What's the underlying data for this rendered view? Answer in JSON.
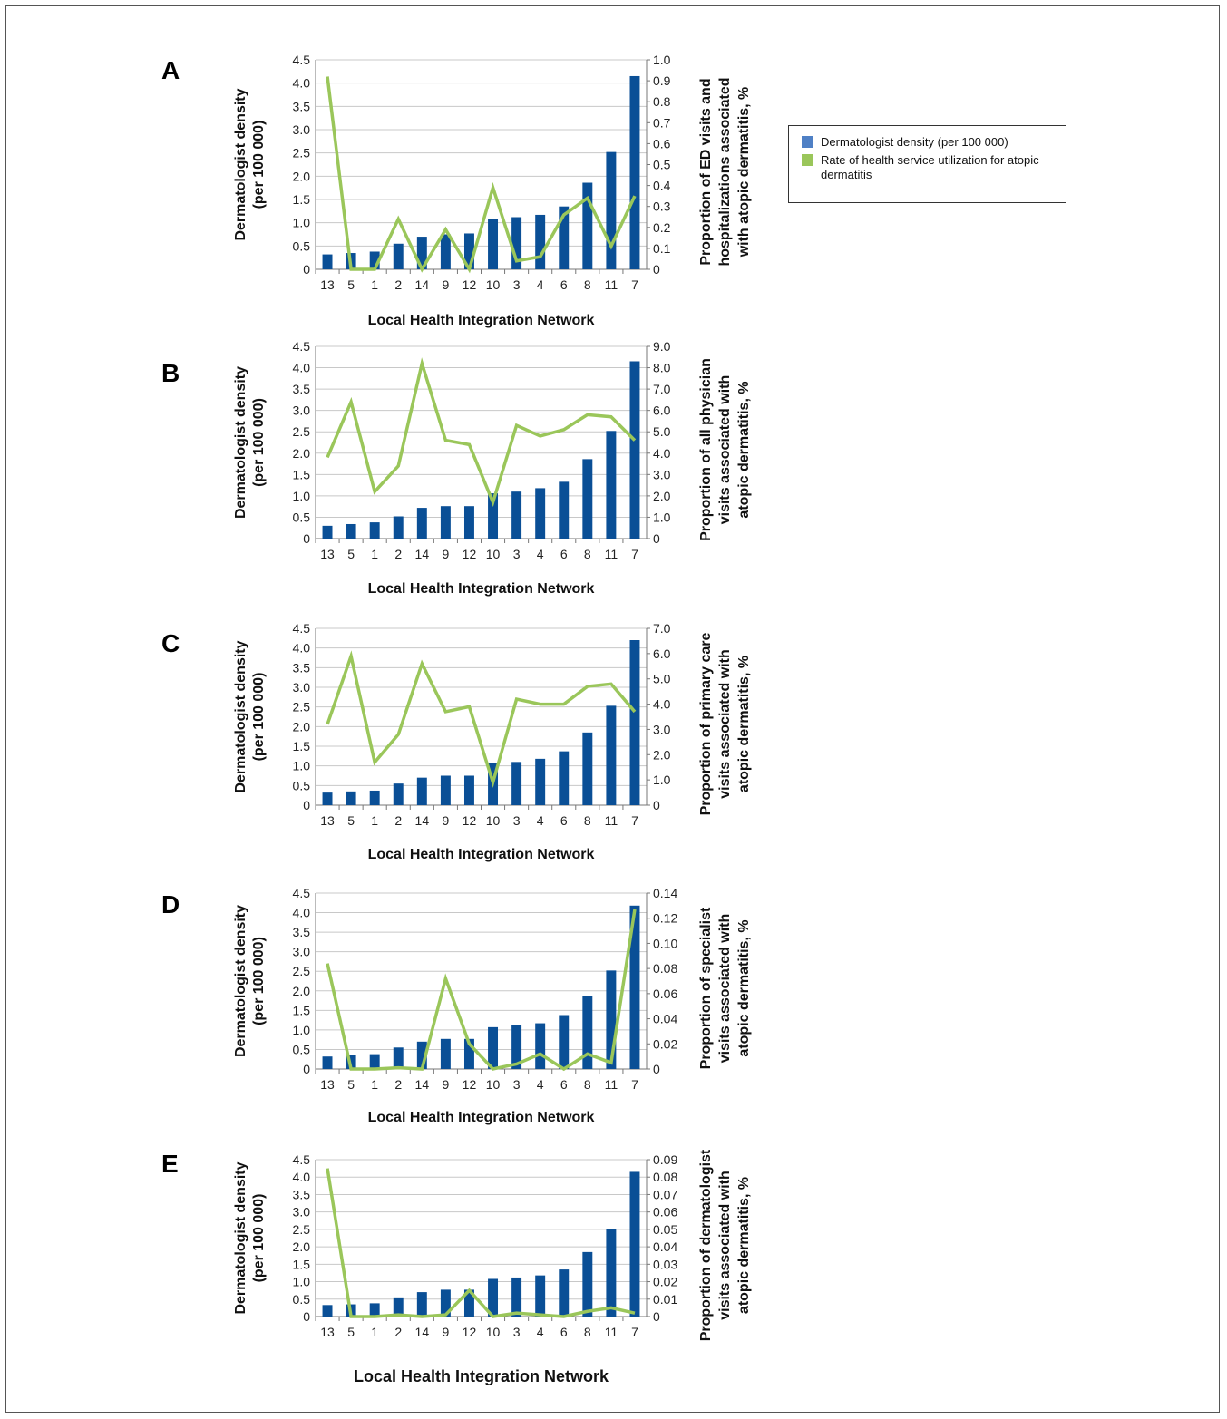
{
  "legend": {
    "density_label": "Dermatologist density (per 100 000)",
    "rate_label": "Rate of health service utilization for atopic dermatitis",
    "colors": {
      "bar": "#0a4f96",
      "line": "#9ac65a",
      "bar_swatch": "#4f80c5"
    }
  },
  "chart_data": [
    {
      "type": "bar+line",
      "panel": "A",
      "categories": [
        "13",
        "5",
        "1",
        "2",
        "14",
        "9",
        "12",
        "10",
        "3",
        "4",
        "6",
        "8",
        "11",
        "7"
      ],
      "xlabel": "Local Health Integration Network",
      "ylabel_left": [
        "Dermatologist density",
        "(per 100 000)"
      ],
      "ylabel_right": [
        "Proportion of ED visits and",
        "hospitalizations associated",
        "with atopic dermatitis, %"
      ],
      "left_axis": {
        "ylim": [
          0,
          4.5
        ],
        "ticks": [
          "0",
          "0.5",
          "1.0",
          "1.5",
          "2.0",
          "2.5",
          "3.0",
          "3.5",
          "4.0",
          "4.5"
        ]
      },
      "right_axis": {
        "ylim": [
          0,
          1.0
        ],
        "ticks": [
          "0",
          "0.1",
          "0.2",
          "0.3",
          "0.4",
          "0.5",
          "0.6",
          "0.7",
          "0.8",
          "0.9",
          "1.0"
        ]
      },
      "series": [
        {
          "name": "Dermatologist density (per 100 000)",
          "type": "bar",
          "axis": "left",
          "values": [
            0.32,
            0.35,
            0.38,
            0.55,
            0.7,
            0.75,
            0.77,
            1.08,
            1.12,
            1.17,
            1.35,
            1.86,
            2.52,
            4.15
          ]
        },
        {
          "name": "Rate of health service utilization for atopic dermatitis",
          "type": "line",
          "axis": "right",
          "values": [
            0.92,
            0.0,
            0.0,
            0.24,
            0.0,
            0.19,
            0.0,
            0.39,
            0.04,
            0.06,
            0.26,
            0.34,
            0.11,
            0.35
          ]
        }
      ]
    },
    {
      "type": "bar+line",
      "panel": "B",
      "categories": [
        "13",
        "5",
        "1",
        "2",
        "14",
        "9",
        "12",
        "10",
        "3",
        "4",
        "6",
        "8",
        "11",
        "7"
      ],
      "xlabel": "Local Health Integration Network",
      "ylabel_left": [
        "Dermatologist density",
        "(per 100 000)"
      ],
      "ylabel_right": [
        "Proportion of all physician",
        "visits associated with",
        "atopic dermatitis, %"
      ],
      "left_axis": {
        "ylim": [
          0,
          4.5
        ],
        "ticks": [
          "0",
          "0.5",
          "1.0",
          "1.5",
          "2.0",
          "2.5",
          "3.0",
          "3.5",
          "4.0",
          "4.5"
        ]
      },
      "right_axis": {
        "ylim": [
          0,
          9.0
        ],
        "ticks": [
          "0",
          "1.0",
          "2.0",
          "3.0",
          "4.0",
          "5.0",
          "6.0",
          "7.0",
          "8.0",
          "9.0"
        ]
      },
      "series": [
        {
          "name": "Dermatologist density (per 100 000)",
          "type": "bar",
          "axis": "left",
          "values": [
            0.3,
            0.34,
            0.38,
            0.52,
            0.72,
            0.76,
            0.76,
            1.06,
            1.1,
            1.18,
            1.33,
            1.86,
            2.52,
            4.15
          ]
        },
        {
          "name": "Rate of health service utilization for atopic dermatitis",
          "type": "line",
          "axis": "right",
          "values": [
            3.8,
            6.4,
            2.2,
            3.4,
            8.2,
            4.6,
            4.4,
            1.7,
            5.3,
            4.8,
            5.1,
            5.8,
            5.7,
            4.6
          ]
        }
      ]
    },
    {
      "type": "bar+line",
      "panel": "C",
      "categories": [
        "13",
        "5",
        "1",
        "2",
        "14",
        "9",
        "12",
        "10",
        "3",
        "4",
        "6",
        "8",
        "11",
        "7"
      ],
      "xlabel": "Local Health Integration Network",
      "ylabel_left": [
        "Dermatologist density",
        "(per 100 000)"
      ],
      "ylabel_right": [
        "Proportion of primary care",
        "visits associated with",
        "atopic dermatitis, %"
      ],
      "left_axis": {
        "ylim": [
          0,
          4.5
        ],
        "ticks": [
          "0",
          "0.5",
          "1.0",
          "1.5",
          "2.0",
          "2.5",
          "3.0",
          "3.5",
          "4.0",
          "4.5"
        ]
      },
      "right_axis": {
        "ylim": [
          0,
          7.0
        ],
        "ticks": [
          "0",
          "1.0",
          "2.0",
          "3.0",
          "4.0",
          "5.0",
          "6.0",
          "7.0"
        ]
      },
      "series": [
        {
          "name": "Dermatologist density (per 100 000)",
          "type": "bar",
          "axis": "left",
          "values": [
            0.32,
            0.35,
            0.37,
            0.55,
            0.7,
            0.75,
            0.75,
            1.08,
            1.1,
            1.18,
            1.37,
            1.85,
            2.53,
            4.2
          ]
        },
        {
          "name": "Rate of health service utilization for atopic dermatitis",
          "type": "line",
          "axis": "right",
          "values": [
            3.2,
            5.9,
            1.7,
            2.8,
            5.6,
            3.7,
            3.9,
            0.9,
            4.2,
            4.0,
            4.0,
            4.7,
            4.8,
            3.7
          ]
        }
      ]
    },
    {
      "type": "bar+line",
      "panel": "D",
      "categories": [
        "13",
        "5",
        "1",
        "2",
        "14",
        "9",
        "12",
        "10",
        "3",
        "4",
        "6",
        "8",
        "11",
        "7"
      ],
      "xlabel": "Local Health Integration Network",
      "ylabel_left": [
        "Dermatologist density",
        "(per 100 000)"
      ],
      "ylabel_right": [
        "Proportion of specialist",
        "visits associated with",
        "atopic dermatitis, %"
      ],
      "left_axis": {
        "ylim": [
          0,
          4.5
        ],
        "ticks": [
          "0",
          "0.5",
          "1.0",
          "1.5",
          "2.0",
          "2.5",
          "3.0",
          "3.5",
          "4.0",
          "4.5"
        ]
      },
      "right_axis": {
        "ylim": [
          0,
          0.14
        ],
        "ticks": [
          "0",
          "0.02",
          "0.04",
          "0.06",
          "0.08",
          "0.10",
          "0.12",
          "0.14"
        ]
      },
      "series": [
        {
          "name": "Dermatologist density (per 100 000)",
          "type": "bar",
          "axis": "left",
          "values": [
            0.32,
            0.35,
            0.38,
            0.55,
            0.7,
            0.77,
            0.77,
            1.07,
            1.12,
            1.17,
            1.38,
            1.87,
            2.52,
            4.18
          ]
        },
        {
          "name": "Rate of health service utilization for atopic dermatitis",
          "type": "line",
          "axis": "right",
          "values": [
            0.084,
            0.0,
            0.0,
            0.001,
            0.0,
            0.072,
            0.02,
            0.0,
            0.004,
            0.012,
            0.0,
            0.012,
            0.005,
            0.127
          ]
        }
      ]
    },
    {
      "type": "bar+line",
      "panel": "E",
      "categories": [
        "13",
        "5",
        "1",
        "2",
        "14",
        "9",
        "12",
        "10",
        "3",
        "4",
        "6",
        "8",
        "11",
        "7"
      ],
      "xlabel": "Local Health Integration Network",
      "ylabel_left": [
        "Dermatologist density",
        "(per 100 000)"
      ],
      "ylabel_right": [
        "Proportion of dermatologist",
        "visits associated with",
        "atopic dermatitis, %"
      ],
      "left_axis": {
        "ylim": [
          0,
          4.5
        ],
        "ticks": [
          "0",
          "0.5",
          "1.0",
          "1.5",
          "2.0",
          "2.5",
          "3.0",
          "3.5",
          "4.0",
          "4.5"
        ]
      },
      "right_axis": {
        "ylim": [
          0,
          0.09
        ],
        "ticks": [
          "0",
          "0.01",
          "0.02",
          "0.03",
          "0.04",
          "0.05",
          "0.06",
          "0.07",
          "0.08",
          "0.09"
        ]
      },
      "series": [
        {
          "name": "Dermatologist density (per 100 000)",
          "type": "bar",
          "axis": "left",
          "values": [
            0.33,
            0.35,
            0.38,
            0.55,
            0.7,
            0.77,
            0.77,
            1.08,
            1.12,
            1.18,
            1.35,
            1.85,
            2.52,
            4.15
          ]
        },
        {
          "name": "Rate of health service utilization for atopic dermatitis",
          "type": "line",
          "axis": "right",
          "values": [
            0.085,
            0.0,
            0.0,
            0.001,
            0.0,
            0.001,
            0.015,
            0.0,
            0.002,
            0.001,
            0.0,
            0.003,
            0.005,
            0.002
          ]
        }
      ]
    }
  ]
}
